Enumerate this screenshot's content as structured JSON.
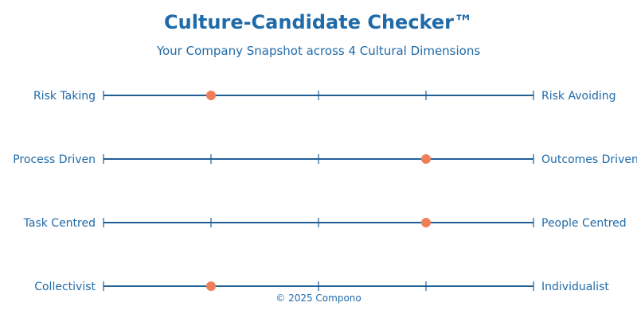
{
  "title": "Culture-Candidate Checker™",
  "subtitle": "Your Company Snapshot across 4 Cultural Dimensions",
  "footer": "© 2025 Compono",
  "colors": {
    "text": "#1f6aa8",
    "line": "#1f5f95",
    "marker": "#ef7f5a"
  },
  "chart_data": {
    "type": "scatter",
    "title": "Culture-Candidate Checker™",
    "subtitle": "Your Company Snapshot across 4 Cultural Dimensions",
    "scale_positions": 5,
    "xlim": [
      0,
      4
    ],
    "grid": false,
    "dimensions": [
      {
        "left_label": "Risk Taking",
        "right_label": "Risk Avoiding",
        "value": 1
      },
      {
        "left_label": "Process Driven",
        "right_label": "Outcomes Driven",
        "value": 3
      },
      {
        "left_label": "Task Centred",
        "right_label": "People Centred",
        "value": 3
      },
      {
        "left_label": "Collectivist",
        "right_label": "Individualist",
        "value": 1
      }
    ]
  }
}
